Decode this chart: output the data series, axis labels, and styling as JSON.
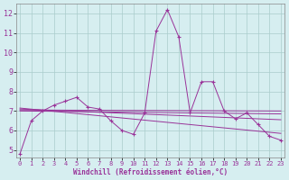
{
  "xlabel": "Windchill (Refroidissement éolien,°C)",
  "background_color": "#d6eef0",
  "line_color": "#993399",
  "grid_color": "#aacccc",
  "x_ticks": [
    0,
    1,
    2,
    3,
    4,
    5,
    6,
    7,
    8,
    9,
    10,
    11,
    12,
    13,
    14,
    15,
    16,
    17,
    18,
    19,
    20,
    21,
    22,
    23
  ],
  "y_ticks": [
    5,
    6,
    7,
    8,
    9,
    10,
    11,
    12
  ],
  "ylim": [
    4.6,
    12.5
  ],
  "xlim": [
    -0.3,
    23.3
  ],
  "main_x": [
    0,
    1,
    2,
    3,
    4,
    5,
    6,
    7,
    8,
    9,
    10,
    11,
    12,
    13,
    14,
    15,
    16,
    17,
    18,
    19,
    20,
    21,
    22,
    23
  ],
  "main_y": [
    4.8,
    6.5,
    7.0,
    7.3,
    7.5,
    7.7,
    7.2,
    7.1,
    6.5,
    6.0,
    5.8,
    6.9,
    11.1,
    12.2,
    10.8,
    6.9,
    8.5,
    8.5,
    7.0,
    6.6,
    6.9,
    6.3,
    5.7,
    5.5
  ],
  "reg_lines": [
    {
      "x": [
        0,
        23
      ],
      "y": [
        7.05,
        7.0
      ]
    },
    {
      "x": [
        0,
        23
      ],
      "y": [
        7.0,
        6.85
      ]
    },
    {
      "x": [
        0,
        23
      ],
      "y": [
        7.1,
        6.55
      ]
    },
    {
      "x": [
        0,
        23
      ],
      "y": [
        7.15,
        5.85
      ]
    }
  ]
}
